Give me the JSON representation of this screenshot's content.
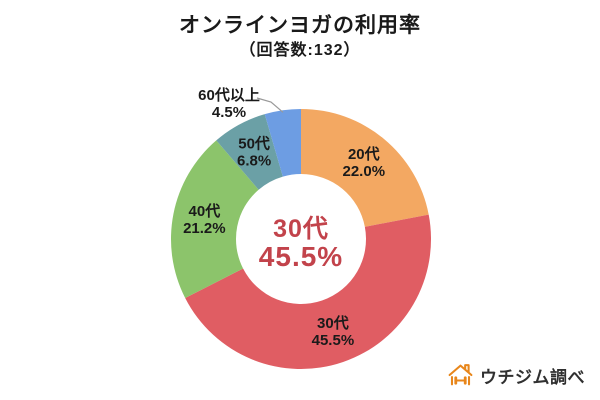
{
  "title": "オンラインヨガの利用率",
  "subtitle": "（回答数:132）",
  "chart_data": {
    "type": "pie",
    "donut": true,
    "title": "オンラインヨガの利用率",
    "subtitle": "（回答数:132）",
    "respondent_count": "132",
    "start_angle": "top",
    "direction": "clockwise",
    "legend": "none",
    "segments": [
      {
        "label": "20代",
        "value": 22.0,
        "display": "22.0%",
        "color": "#F3A862",
        "label_placement": "inside"
      },
      {
        "label": "30代",
        "value": 45.5,
        "display": "45.5%",
        "color": "#E05D63",
        "label_placement": "inside"
      },
      {
        "label": "40代",
        "value": 21.2,
        "display": "21.2%",
        "color": "#8CC46B",
        "label_placement": "inside"
      },
      {
        "label": "50代",
        "value": 6.8,
        "display": "6.8%",
        "color": "#6BA0A6",
        "label_placement": "inside"
      },
      {
        "label": "60代以上",
        "value": 4.5,
        "display": "4.5%",
        "color": "#6D9DE3",
        "label_placement": "outside"
      }
    ],
    "center_label": {
      "line1": "30代",
      "line2": "45.5%",
      "color": "#C2434B"
    }
  },
  "source": {
    "label": "ウチジム調べ",
    "icon": "house-dumbbell-icon",
    "brand_color": "#E8861B"
  }
}
